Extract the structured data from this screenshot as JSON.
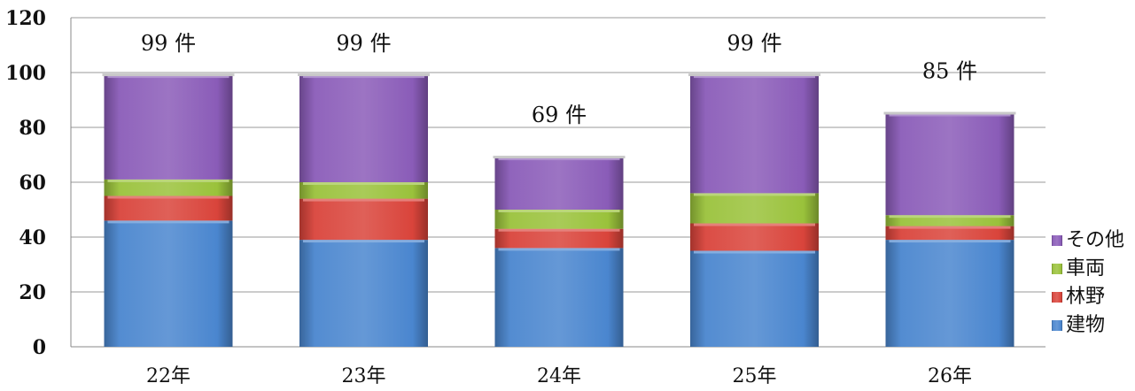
{
  "chart_data": {
    "type": "bar",
    "stacked": true,
    "categories": [
      "22年",
      "23年",
      "24年",
      "25年",
      "26年"
    ],
    "series": [
      {
        "name": "建物",
        "color": "#4A86CF",
        "values": [
          46,
          39,
          36,
          35,
          39
        ]
      },
      {
        "name": "林野",
        "color": "#D9443B",
        "values": [
          9,
          15,
          7,
          10,
          5
        ]
      },
      {
        "name": "車両",
        "color": "#9AC23B",
        "values": [
          6,
          6,
          7,
          11,
          4
        ]
      },
      {
        "name": "その他",
        "color": "#8A5CB8",
        "values": [
          38,
          39,
          19,
          43,
          37
        ]
      }
    ],
    "totals": [
      "99 件",
      "99 件",
      "69 件",
      "99 件",
      "85 件"
    ],
    "ylim": [
      0,
      120
    ],
    "yticks": [
      0,
      20,
      40,
      60,
      80,
      100,
      120
    ],
    "grid": true,
    "legend": "right",
    "title": "",
    "xlabel": "",
    "ylabel": ""
  }
}
